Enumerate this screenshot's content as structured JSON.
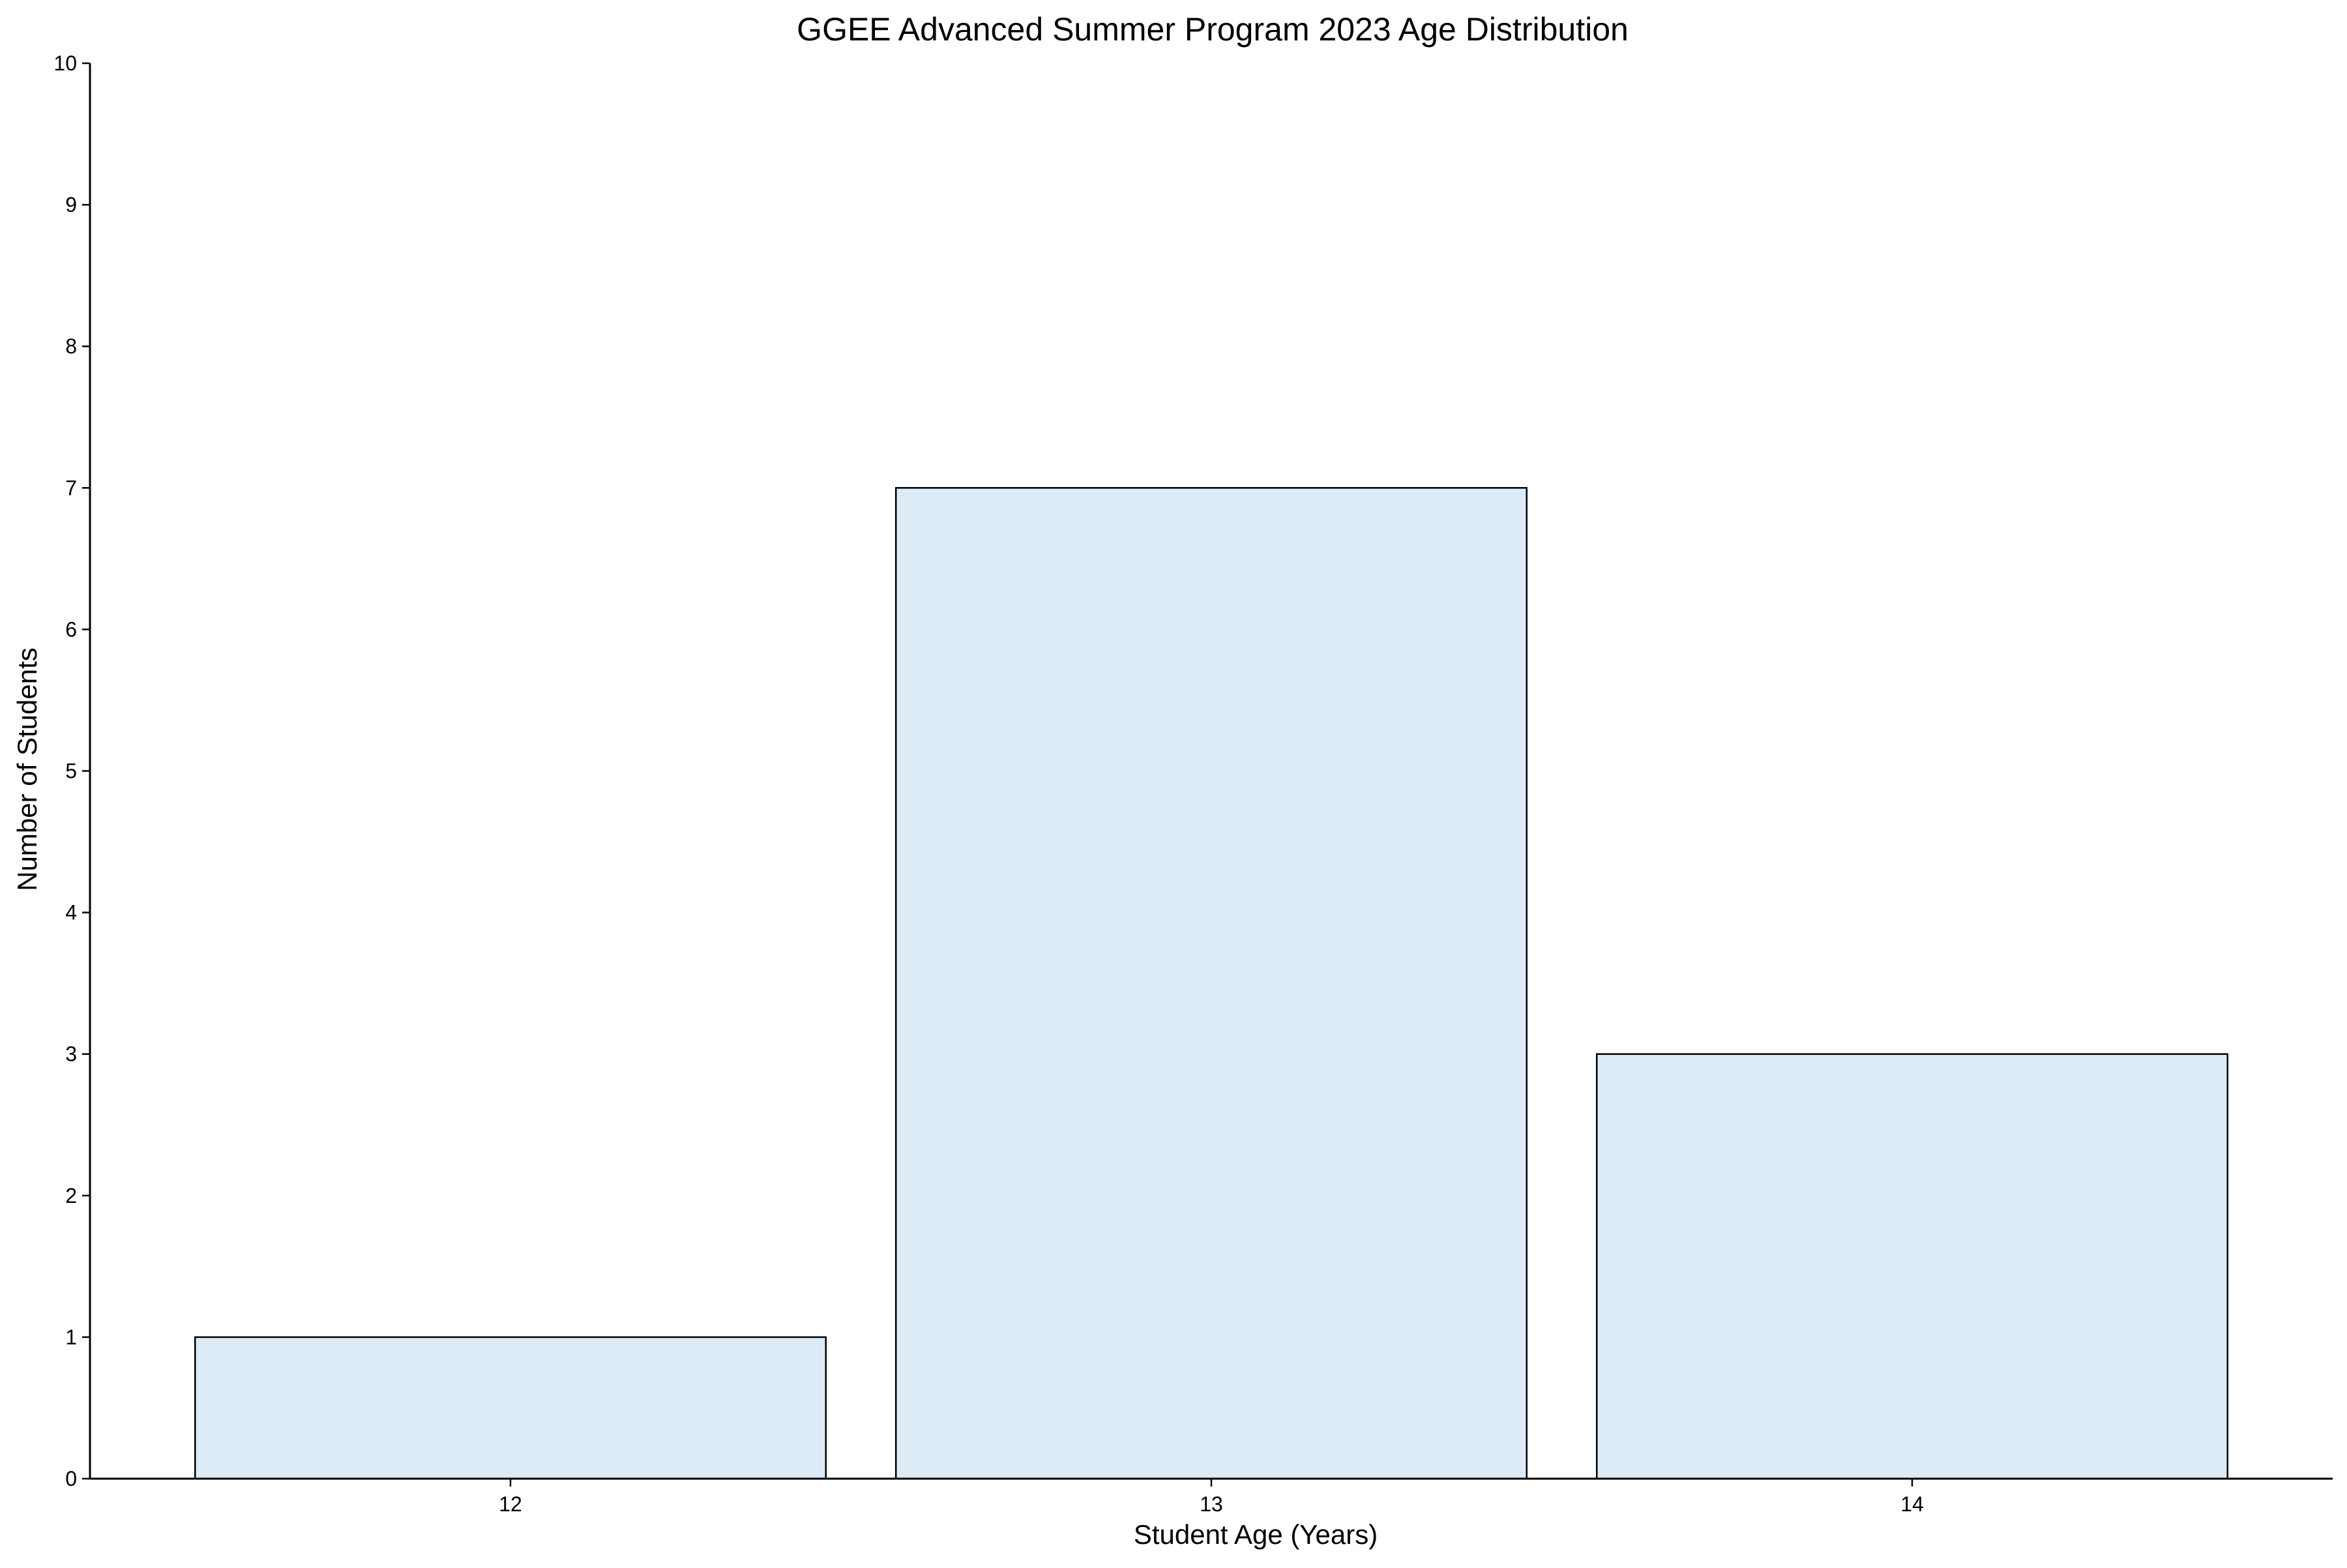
{
  "chart_data": {
    "type": "bar",
    "title": "GGEE Advanced Summer Program 2023 Age Distribution",
    "xlabel": "Student Age (Years)",
    "ylabel": "Number of Students",
    "categories": [
      "12",
      "13",
      "14"
    ],
    "values": [
      1,
      7,
      3
    ],
    "ylim": [
      0,
      10
    ],
    "yticks": [
      "0",
      "1",
      "2",
      "3",
      "4",
      "5",
      "6",
      "7",
      "8",
      "9",
      "10"
    ],
    "grid": false,
    "bar_color": "#ddebf7",
    "bar_edge_color": "#000000"
  }
}
